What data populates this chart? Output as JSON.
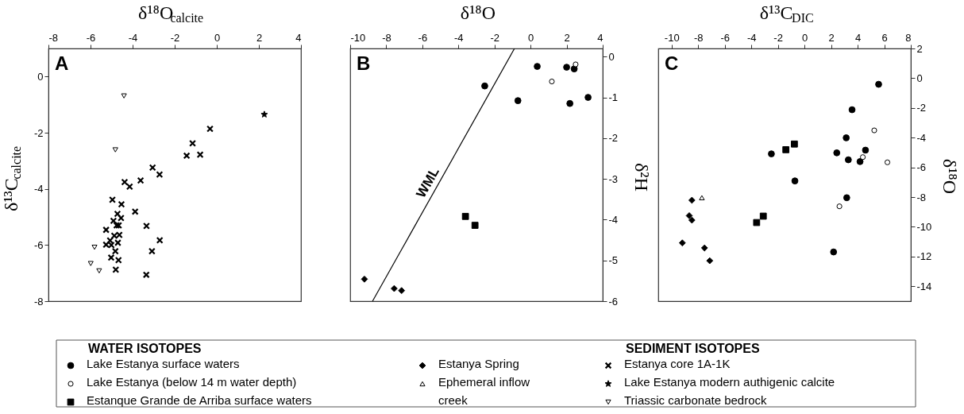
{
  "chart_data": [
    {
      "type": "scatter",
      "title": "A",
      "xlabel": "δ¹⁸O$_{calcite}$",
      "ylabel": "δ¹³C$_{calcite}$",
      "xlim": [
        -8,
        4
      ],
      "xticks": [
        -8,
        -6,
        -4,
        -2,
        0,
        2,
        4
      ],
      "ylim": [
        -8,
        1
      ],
      "yticks": [
        -8,
        -6,
        -4,
        -2,
        0
      ],
      "legend": "bottom right",
      "legend_title": "SEDIMENT ISOTOPES",
      "series": [
        {
          "name": "Estanya core 1A-1K",
          "color": "#000000",
          "marker": "cross",
          "x": [
            -0.32,
            -1.15,
            -1.43,
            -0.79,
            -3.05,
            -2.72,
            -4.38,
            -4.14,
            -3.62,
            -4.96,
            -4.53,
            -3.88,
            -4.72,
            -4.55,
            -4.91,
            -4.76,
            -4.66,
            -3.34,
            -5.26,
            -5.07,
            -4.87,
            -4.63,
            -5.26,
            -5.01,
            -4.7,
            -2.71,
            -4.82,
            -3.08,
            -5.02,
            -4.67,
            -4.8,
            -3.35
          ],
          "values": [
            -1.86,
            -2.38,
            -2.82,
            -2.78,
            -3.24,
            -3.49,
            -3.76,
            -3.92,
            -3.7,
            -4.39,
            -4.55,
            -4.81,
            -4.89,
            -5.04,
            -5.14,
            -5.3,
            -5.3,
            -5.32,
            -5.46,
            -5.84,
            -5.67,
            -5.64,
            -5.99,
            -6.0,
            -5.92,
            -5.83,
            -6.22,
            -6.22,
            -6.45,
            -6.54,
            -6.88,
            -7.06
          ]
        },
        {
          "name": "Lake Estanya modern authigenic calcite",
          "color": "#000000",
          "marker": "star",
          "x": [
            2.26
          ],
          "values": [
            -1.35
          ]
        },
        {
          "name": "Triassic carbonate bedrock",
          "color": "#ffffff",
          "marker": "triangle-down",
          "x": [
            -4.41,
            -4.82,
            -5.81,
            -5.99,
            -5.59
          ],
          "values": [
            -0.69,
            -2.61,
            -6.08,
            -6.66,
            -6.92
          ]
        }
      ]
    },
    {
      "type": "scatter",
      "title": "B",
      "xlabel": "δ¹⁸O",
      "ylabel": "δ²H",
      "xlim": [
        -10,
        4
      ],
      "xticks": [
        -10,
        -8,
        -6,
        -4,
        -2,
        0,
        2,
        4
      ],
      "ylim": [
        -6,
        0.2
      ],
      "yticks": [
        -6,
        -5,
        -4,
        -3,
        -2,
        -1,
        0
      ],
      "legend": "bottom left",
      "legend_title": "WATER ISOTOPES",
      "series": [
        {
          "name": "Lake Estanya surface waters",
          "color": "#000000",
          "marker": "circle",
          "x": [
            -2.54,
            0.37,
            2.0,
            2.42,
            -0.7,
            2.18,
            3.19
          ],
          "values": [
            -0.72,
            -0.24,
            -0.26,
            -0.3,
            -1.08,
            -1.15,
            -1.0
          ]
        },
        {
          "name": "Lake Estanya (below 14 m water depth)",
          "color": "#ffffff",
          "marker": "circle",
          "x": [
            1.18,
            2.5
          ],
          "values": [
            -0.61,
            -0.19
          ]
        },
        {
          "name": "Estanque Grande de Arriba surface waters",
          "color": "#000000",
          "marker": "square",
          "x": [
            -3.61,
            -3.08
          ],
          "values": [
            -3.92,
            -4.14
          ]
        },
        {
          "name": "Estanya Spring",
          "color": "#000000",
          "marker": "diamond",
          "x": [
            -9.21,
            -7.56,
            -7.15
          ],
          "values": [
            -5.46,
            -5.69,
            -5.74
          ]
        },
        {
          "name": "WML",
          "type": "line",
          "color": "#000000",
          "x": [
            -8.76,
            -0.89
          ],
          "values": [
            -6,
            0.2
          ]
        }
      ]
    },
    {
      "type": "scatter",
      "title": "C",
      "xlabel": "δ¹³C$_{DIC}$",
      "ylabel": "δ¹⁸O",
      "xlim": [
        -11,
        8
      ],
      "xticks": [
        -10,
        -8,
        -6,
        -4,
        -2,
        0,
        2,
        4,
        6,
        8
      ],
      "ylim": [
        -15,
        2
      ],
      "yticks": [
        -14,
        -12,
        -10,
        -8,
        -6,
        -4,
        -2,
        0,
        2
      ],
      "legend": "bottom left",
      "series": [
        {
          "name": "Lake Estanya surface waters",
          "color": "#000000",
          "marker": "circle",
          "x": [
            5.58,
            3.58,
            3.14,
            2.43,
            4.59,
            3.3,
            4.18,
            -2.49,
            -0.72,
            3.18,
            2.19
          ],
          "values": [
            -0.41,
            -2.12,
            -4.01,
            -5.02,
            -4.84,
            -5.49,
            -5.61,
            -5.09,
            -6.91,
            -8.04,
            -11.69
          ]
        },
        {
          "name": "Lake Estanya (below 14 m water depth)",
          "color": "#ffffff",
          "marker": "circle",
          "x": [
            5.25,
            4.39,
            6.24,
            2.63
          ],
          "values": [
            -3.51,
            -5.31,
            -5.66,
            -8.62
          ]
        },
        {
          "name": "Estanque Grande de Arriba surface waters",
          "color": "#000000",
          "marker": "square",
          "x": [
            -0.76,
            -1.4,
            -3.1,
            -3.6
          ],
          "values": [
            -4.43,
            -4.81,
            -9.28,
            -9.71
          ]
        },
        {
          "name": "Estanya Spring",
          "color": "#000000",
          "marker": "diamond",
          "x": [
            -8.47,
            -8.67,
            -8.47,
            -9.19,
            -7.52,
            -7.13
          ],
          "values": [
            -8.21,
            -9.25,
            -9.55,
            -11.08,
            -11.42,
            -12.28
          ]
        },
        {
          "name": "Ephemeral inflow creek",
          "color": "#ffffff",
          "marker": "triangle",
          "x": [
            -7.72
          ],
          "values": [
            -8.04
          ]
        }
      ]
    }
  ]
}
